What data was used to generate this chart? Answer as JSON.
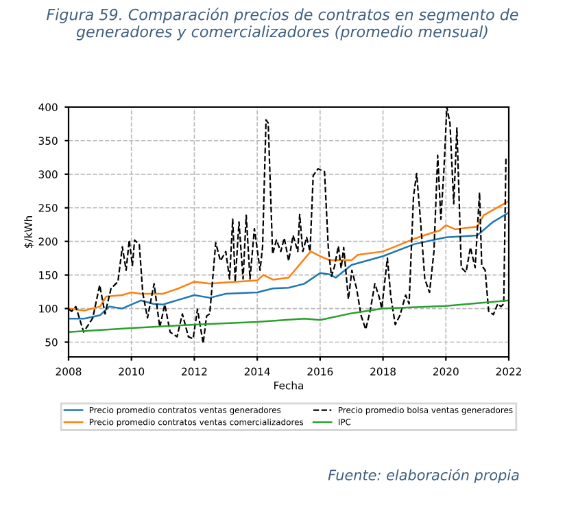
{
  "chart_data": {
    "type": "line",
    "title": "Figura 59. Comparación precios de contratos en segmento de generadores y comercializadores (promedio mensual)",
    "xlabel": "Fecha",
    "ylabel": "$/kWh",
    "xlim": [
      2008,
      2022
    ],
    "xticks": [
      2008,
      2010,
      2012,
      2014,
      2016,
      2018,
      2020,
      2022
    ],
    "ylim": [
      28,
      400
    ],
    "yticks": [
      50,
      100,
      150,
      200,
      250,
      300,
      350,
      400
    ],
    "grid": true,
    "legend": "bottom",
    "annotations": [
      "Fuente: elaboración propia"
    ],
    "series": [
      {
        "name": "Precio promedio contratos ventas generadores",
        "color": "#1f77b4",
        "line_style": "solid",
        "x": [
          2008,
          2008.5,
          2009,
          2009.3,
          2009.7,
          2010,
          2010.3,
          2010.7,
          2011,
          2011.5,
          2012,
          2012.5,
          2013,
          2014,
          2014.5,
          2015,
          2015.5,
          2016,
          2016.3,
          2016.5,
          2017,
          2018,
          2019,
          2020,
          2021,
          2021.5,
          2022
        ],
        "values": [
          85,
          85,
          90,
          103,
          100,
          106,
          112,
          107,
          106,
          113,
          120,
          116,
          122,
          124,
          130,
          131,
          137,
          153,
          151,
          146,
          165,
          178,
          196,
          206,
          209,
          229,
          243
        ]
      },
      {
        "name": "Precio promedio contratos ventas comercializadores",
        "color": "#ff7f0e",
        "line_style": "solid",
        "x": [
          2008,
          2008.5,
          2009,
          2009.2,
          2009.7,
          2010,
          2010.3,
          2011,
          2011.5,
          2012,
          2012.5,
          2013,
          2014,
          2014.2,
          2014.5,
          2015,
          2015.7,
          2016,
          2016.3,
          2017,
          2017.2,
          2018,
          2019,
          2019.5,
          2019.8,
          2020,
          2020.3,
          2021,
          2021.2,
          2022
        ],
        "values": [
          100,
          97,
          103,
          118,
          120,
          124,
          122,
          122,
          130,
          140,
          137,
          139,
          142,
          150,
          143,
          146,
          185,
          178,
          172,
          172,
          180,
          185,
          204,
          212,
          216,
          224,
          218,
          222,
          239,
          260
        ]
      },
      {
        "name": "Precio promedio bolsa ventas generadores",
        "color": "#000000",
        "line_style": "dashed",
        "x": [
          2008,
          2008.1,
          2008.23,
          2008.48,
          2008.77,
          2008.99,
          2009.16,
          2009.35,
          2009.57,
          2009.71,
          2009.83,
          2009.93,
          2010.03,
          2010.1,
          2010.25,
          2010.36,
          2010.51,
          2010.72,
          2010.9,
          2011.06,
          2011.23,
          2011.45,
          2011.62,
          2011.81,
          2011.96,
          2012.1,
          2012.28,
          2012.39,
          2012.49,
          2012.68,
          2012.83,
          2013,
          2013.12,
          2013.22,
          2013.3,
          2013.42,
          2013.55,
          2013.65,
          2013.77,
          2013.91,
          2014.09,
          2014.17,
          2014.28,
          2014.35,
          2014.49,
          2014.61,
          2014.75,
          2014.86,
          2015,
          2015.14,
          2015.29,
          2015.35,
          2015.45,
          2015.57,
          2015.68,
          2015.78,
          2015.93,
          2016.14,
          2016.26,
          2016.36,
          2016.46,
          2016.58,
          2016.67,
          2016.75,
          2016.9,
          2017.01,
          2017.16,
          2017.3,
          2017.45,
          2017.59,
          2017.74,
          2017.88,
          2017.96,
          2018.14,
          2018.25,
          2018.39,
          2018.54,
          2018.72,
          2018.83,
          2018.97,
          2019.07,
          2019.19,
          2019.33,
          2019.48,
          2019.62,
          2019.74,
          2019.84,
          2019.94,
          2020.03,
          2020.13,
          2020.25,
          2020.35,
          2020.49,
          2020.64,
          2020.78,
          2020.93,
          2021.07,
          2021.14,
          2021.25,
          2021.36,
          2021.51,
          2021.65,
          2021.75,
          2021.84,
          2021.91
        ],
        "values": [
          99,
          96,
          103,
          65,
          86,
          135,
          92,
          130,
          140,
          192,
          157,
          202,
          164,
          202,
          195,
          123,
          86,
          137,
          72,
          106,
          65,
          58,
          92,
          58,
          55,
          99,
          48,
          89,
          92,
          198,
          171,
          185,
          144,
          233,
          140,
          229,
          144,
          239,
          144,
          219,
          157,
          192,
          381,
          376,
          181,
          202,
          185,
          205,
          171,
          209,
          185,
          240,
          185,
          206,
          185,
          298,
          308,
          304,
          191,
          148,
          163,
          193,
          160,
          191,
          114,
          157,
          130,
          90,
          69,
          96,
          137,
          117,
          100,
          175,
          117,
          76,
          90,
          120,
          107,
          267,
          301,
          233,
          144,
          124,
          185,
          328,
          233,
          308,
          400,
          376,
          256,
          369,
          161,
          154,
          191,
          161,
          273,
          164,
          157,
          96,
          91,
          107,
          103,
          107,
          325
        ]
      },
      {
        "name": "IPC",
        "color": "#2ca02c",
        "line_style": "solid",
        "x": [
          2008,
          2010,
          2012,
          2014,
          2015.5,
          2016,
          2017,
          2018,
          2020,
          2022
        ],
        "values": [
          65,
          71,
          76,
          80,
          85,
          83,
          93,
          100,
          104,
          112
        ]
      }
    ]
  }
}
